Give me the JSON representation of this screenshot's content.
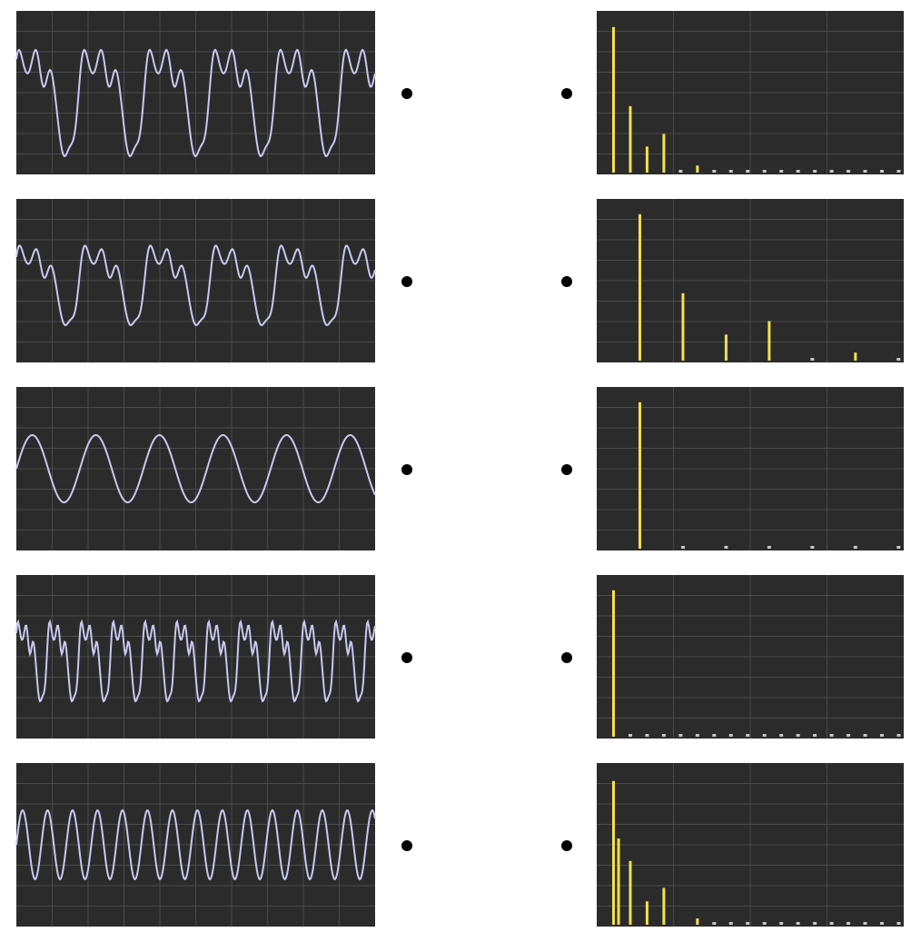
{
  "chart_data": [
    {
      "type": "bar",
      "color": "#f2e14c",
      "xlim": [
        0,
        18.3
      ],
      "ylim": [
        0,
        180
      ],
      "x": [
        1,
        2,
        3,
        4,
        5,
        6,
        7,
        8,
        9,
        10,
        11,
        12,
        13,
        14,
        15,
        16,
        17,
        18
      ],
      "values": [
        162,
        74,
        29,
        43,
        0,
        8,
        0,
        0,
        0,
        0,
        0,
        0,
        0,
        0,
        0,
        0,
        0,
        0
      ]
    },
    {
      "type": "bar",
      "color": "#f2e14c",
      "xlim": [
        0,
        18.3
      ],
      "ylim": [
        0,
        180
      ],
      "x": [
        2.57,
        5.14,
        7.71,
        10.28,
        12.85,
        15.42,
        17.99
      ],
      "values": [
        163,
        75,
        29,
        44,
        0,
        9,
        0
      ]
    },
    {
      "type": "bar",
      "color": "#f2e14c",
      "xlim": [
        0,
        18.3
      ],
      "ylim": [
        0,
        180
      ],
      "x": [
        2.57,
        5.14,
        7.71,
        10.28,
        12.85,
        15.42,
        17.99
      ],
      "values": [
        163,
        0,
        0,
        0,
        0,
        0,
        0
      ]
    },
    {
      "type": "bar",
      "color": "#f2e14c",
      "xlim": [
        0,
        18.3
      ],
      "ylim": [
        0,
        180
      ],
      "x": [
        1,
        2,
        3,
        4,
        5,
        6,
        7,
        8,
        9,
        10,
        11,
        12,
        13,
        14,
        15,
        16,
        17,
        18
      ],
      "values": [
        163,
        0,
        0,
        0,
        0,
        0,
        0,
        0,
        0,
        0,
        0,
        0,
        0,
        0,
        0,
        0,
        0,
        0
      ]
    },
    {
      "type": "bar",
      "color": "#f2e14c",
      "xlim": [
        0,
        18.3
      ],
      "ylim": [
        0,
        180
      ],
      "x": [
        1,
        1.3,
        2,
        3,
        4,
        6,
        7,
        8,
        9,
        10,
        11,
        12,
        13,
        14,
        15,
        16,
        17,
        18
      ],
      "values": [
        160,
        96,
        71,
        26,
        41,
        7,
        0,
        0,
        0,
        0,
        0,
        0,
        0,
        0,
        0,
        0,
        0,
        0
      ]
    }
  ]
}
